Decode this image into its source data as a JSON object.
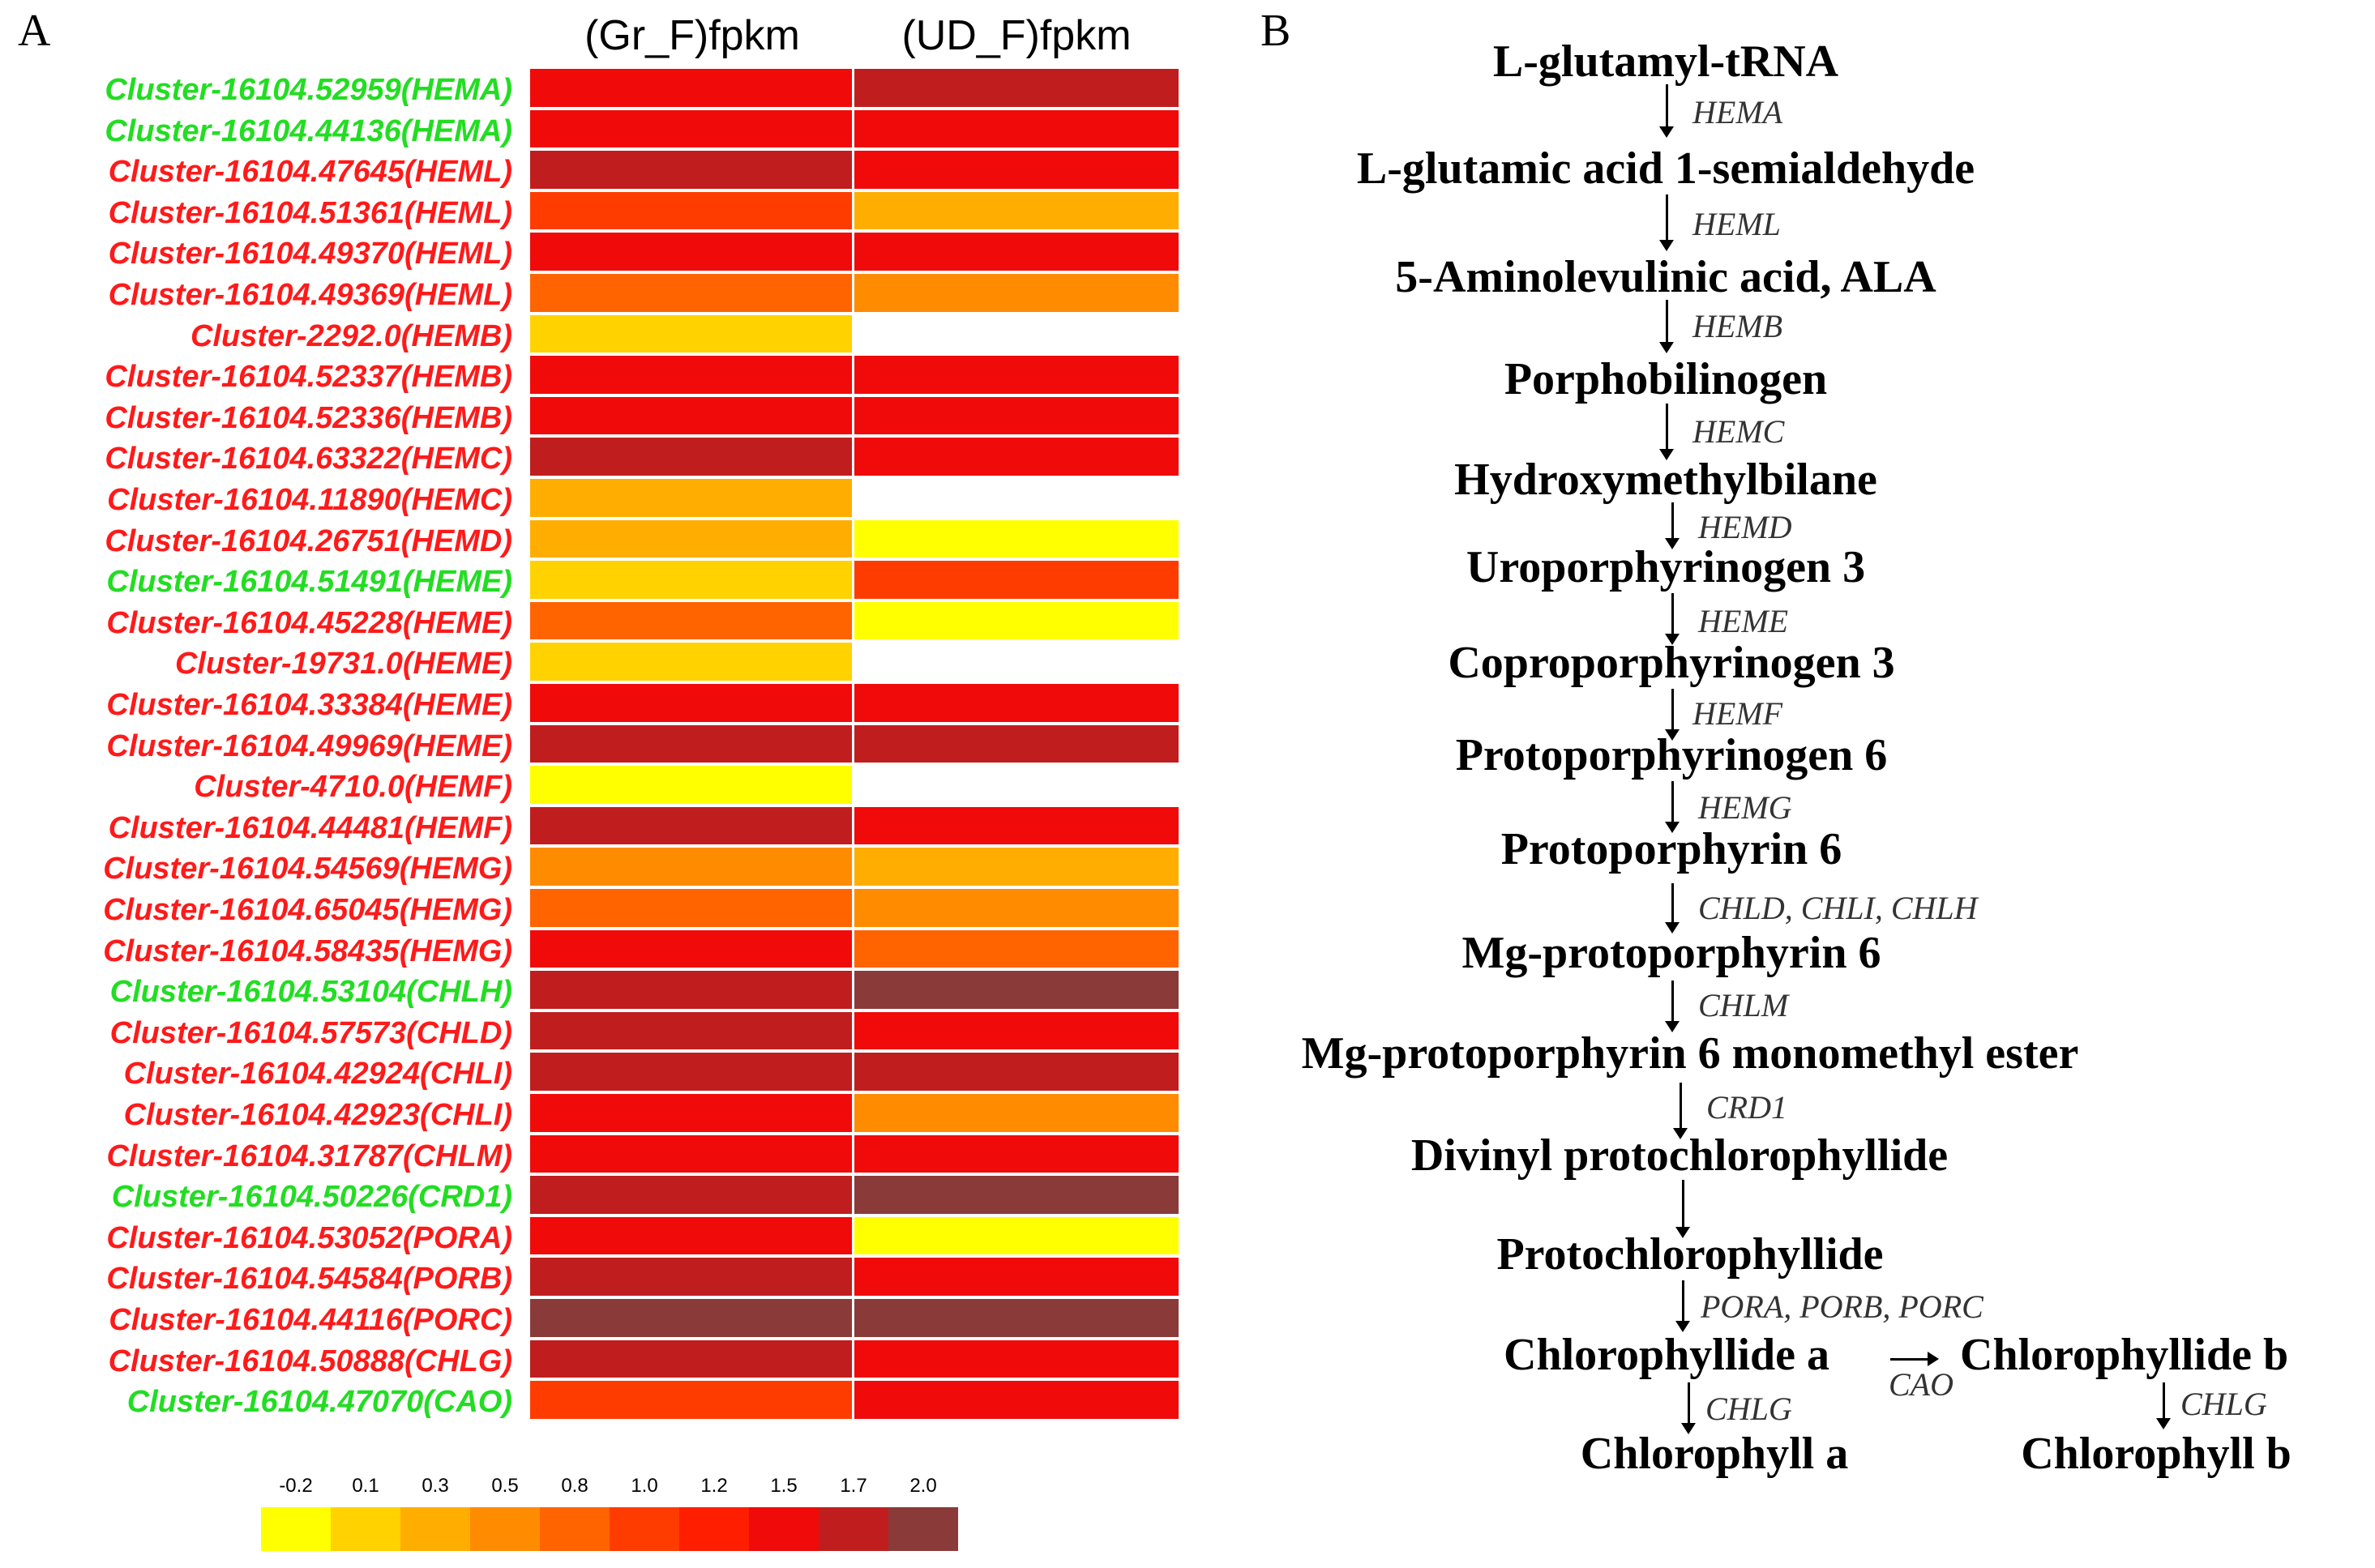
{
  "panel_a": {
    "letter": "A",
    "columns": [
      "(Gr_F)fpkm",
      "(UD_F)fpkm"
    ],
    "rows": [
      {
        "label": "Cluster-16104.52959(HEMA)",
        "label_color": "#22dd22",
        "values": [
          1.5,
          1.7
        ]
      },
      {
        "label": "Cluster-16104.44136(HEMA)",
        "label_color": "#22dd22",
        "values": [
          1.5,
          1.5
        ]
      },
      {
        "label": "Cluster-16104.47645(HEML)",
        "label_color": "#ff1a1a",
        "values": [
          1.7,
          1.5
        ]
      },
      {
        "label": "Cluster-16104.51361(HEML)",
        "label_color": "#ff1a1a",
        "values": [
          1.0,
          0.3
        ]
      },
      {
        "label": "Cluster-16104.49370(HEML)",
        "label_color": "#ff1a1a",
        "values": [
          1.5,
          1.5
        ]
      },
      {
        "label": "Cluster-16104.49369(HEML)",
        "label_color": "#ff1a1a",
        "values": [
          0.8,
          0.5
        ]
      },
      {
        "label": "Cluster-2292.0(HEMB)",
        "label_color": "#ff1a1a",
        "values": [
          0.1,
          null
        ]
      },
      {
        "label": "Cluster-16104.52337(HEMB)",
        "label_color": "#ff1a1a",
        "values": [
          1.5,
          1.5
        ]
      },
      {
        "label": "Cluster-16104.52336(HEMB)",
        "label_color": "#ff1a1a",
        "values": [
          1.5,
          1.5
        ]
      },
      {
        "label": "Cluster-16104.63322(HEMC)",
        "label_color": "#ff1a1a",
        "values": [
          1.7,
          1.5
        ]
      },
      {
        "label": "Cluster-16104.11890(HEMC)",
        "label_color": "#ff1a1a",
        "values": [
          0.3,
          null
        ]
      },
      {
        "label": "Cluster-16104.26751(HEMD)",
        "label_color": "#ff1a1a",
        "values": [
          0.3,
          -0.2
        ]
      },
      {
        "label": "Cluster-16104.51491(HEME)",
        "label_color": "#22dd22",
        "values": [
          0.1,
          1.0
        ]
      },
      {
        "label": "Cluster-16104.45228(HEME)",
        "label_color": "#ff1a1a",
        "values": [
          0.8,
          -0.2
        ]
      },
      {
        "label": "Cluster-19731.0(HEME)",
        "label_color": "#ff1a1a",
        "values": [
          0.1,
          null
        ]
      },
      {
        "label": "Cluster-16104.33384(HEME)",
        "label_color": "#ff1a1a",
        "values": [
          1.5,
          1.5
        ]
      },
      {
        "label": "Cluster-16104.49969(HEME)",
        "label_color": "#ff1a1a",
        "values": [
          1.7,
          1.7
        ]
      },
      {
        "label": "Cluster-4710.0(HEMF)",
        "label_color": "#ff1a1a",
        "values": [
          -0.2,
          null
        ]
      },
      {
        "label": "Cluster-16104.44481(HEMF)",
        "label_color": "#ff1a1a",
        "values": [
          1.7,
          1.5
        ]
      },
      {
        "label": "Cluster-16104.54569(HEMG)",
        "label_color": "#ff1a1a",
        "values": [
          0.5,
          0.3
        ]
      },
      {
        "label": "Cluster-16104.65045(HEMG)",
        "label_color": "#ff1a1a",
        "values": [
          0.8,
          0.5
        ]
      },
      {
        "label": "Cluster-16104.58435(HEMG)",
        "label_color": "#ff1a1a",
        "values": [
          1.5,
          0.8
        ]
      },
      {
        "label": "Cluster-16104.53104(CHLH)",
        "label_color": "#22dd22",
        "values": [
          1.7,
          2.0
        ]
      },
      {
        "label": "Cluster-16104.57573(CHLD)",
        "label_color": "#ff1a1a",
        "values": [
          1.7,
          1.5
        ]
      },
      {
        "label": "Cluster-16104.42924(CHLI)",
        "label_color": "#ff1a1a",
        "values": [
          1.7,
          1.7
        ]
      },
      {
        "label": "Cluster-16104.42923(CHLI)",
        "label_color": "#ff1a1a",
        "values": [
          1.5,
          0.5
        ]
      },
      {
        "label": "Cluster-16104.31787(CHLM)",
        "label_color": "#ff1a1a",
        "values": [
          1.5,
          1.5
        ]
      },
      {
        "label": "Cluster-16104.50226(CRD1)",
        "label_color": "#22dd22",
        "values": [
          1.7,
          2.0
        ]
      },
      {
        "label": "Cluster-16104.53052(PORA)",
        "label_color": "#ff1a1a",
        "values": [
          1.5,
          -0.2
        ]
      },
      {
        "label": "Cluster-16104.54584(PORB)",
        "label_color": "#ff1a1a",
        "values": [
          1.7,
          1.5
        ]
      },
      {
        "label": "Cluster-16104.44116(PORC)",
        "label_color": "#ff1a1a",
        "values": [
          2.0,
          2.0
        ]
      },
      {
        "label": "Cluster-16104.50888(CHLG)",
        "label_color": "#ff1a1a",
        "values": [
          1.7,
          1.5
        ]
      },
      {
        "label": "Cluster-16104.47070(CAO)",
        "label_color": "#22dd22",
        "values": [
          1.0,
          1.5
        ]
      }
    ],
    "legend": {
      "ticks": [
        "-0.2",
        "0.1",
        "0.3",
        "0.5",
        "0.8",
        "1.0",
        "1.2",
        "1.5",
        "1.7",
        "2.0"
      ],
      "colors": [
        "#ffff00",
        "#ffd200",
        "#ffae00",
        "#ff8c00",
        "#ff6400",
        "#ff3c00",
        "#ff1e00",
        "#f00a0a",
        "#c01e1e",
        "#8b3a3a"
      ]
    }
  },
  "panel_b": {
    "letter": "B",
    "compounds": {
      "glutamyl_trna": "L-glutamyl-tRNA",
      "gsa": "L-glutamic acid 1-semialdehyde",
      "ala": "5-Aminolevulinic acid, ALA",
      "pbg": "Porphobilinogen",
      "hmb": "Hydroxymethylbilane",
      "uro3": "Uroporphyrinogen 3",
      "copro3": "Coproporphyrinogen 3",
      "protogen6": "Protoporphyrinogen 6",
      "proto6": "Protoporphyrin 6",
      "mgproto6": "Mg-protoporphyrin 6",
      "mgproto6me": "Mg-protoporphyrin 6 monomethyl ester",
      "dvpchlide": "Divinyl protochlorophyllide",
      "pchlide": "Protochlorophyllide",
      "chlide_a": "Chlorophyllide a",
      "chlide_b": "Chlorophyllide b",
      "chl_a": "Chlorophyll a",
      "chl_b": "Chlorophyll b"
    },
    "enzymes": {
      "hema": "HEMA",
      "heml": "HEML",
      "hemb": "HEMB",
      "hemc": "HEMC",
      "hemd": "HEMD",
      "heme": "HEME",
      "hemf": "HEMF",
      "hemg": "HEMG",
      "chl": "CHLD, CHLI, CHLH",
      "chlm": "CHLM",
      "crd1": "CRD1",
      "por": "PORA, PORB, PORC",
      "cao": "CAO",
      "chlg_a": "CHLG",
      "chlg_b": "CHLG"
    }
  }
}
